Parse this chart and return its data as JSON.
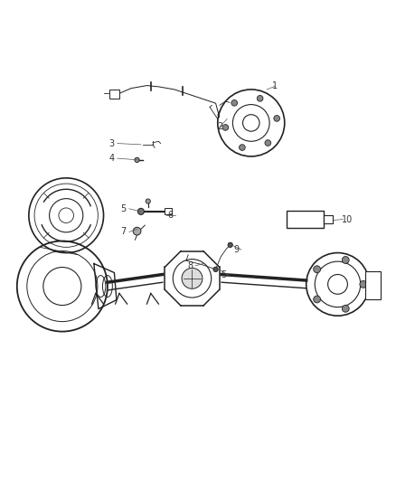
{
  "background_color": "#ffffff",
  "fig_width": 4.38,
  "fig_height": 5.33,
  "dpi": 100,
  "line_color": "#222222",
  "text_color": "#333333"
}
